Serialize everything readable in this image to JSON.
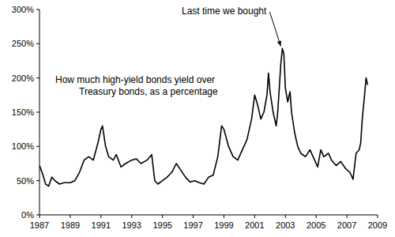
{
  "chart_data": {
    "type": "line",
    "title": "How much high-yield bonds yield over Treasury bonds, as a percentage",
    "annotations": [
      "Last time we bought"
    ],
    "color": "#000000",
    "x": [
      1987.0,
      1987.2,
      1987.4,
      1987.6,
      1987.8,
      1988.0,
      1988.3,
      1988.6,
      1989.0,
      1989.3,
      1989.6,
      1989.9,
      1990.2,
      1990.5,
      1990.8,
      1991.0,
      1991.1,
      1991.3,
      1991.5,
      1991.8,
      1992.0,
      1992.3,
      1992.6,
      1993.0,
      1993.3,
      1993.6,
      1994.0,
      1994.3,
      1994.5,
      1994.7,
      1995.0,
      1995.3,
      1995.6,
      1995.9,
      1996.2,
      1996.5,
      1996.8,
      1997.1,
      1997.4,
      1997.7,
      1998.0,
      1998.3,
      1998.6,
      1998.85,
      1999.0,
      1999.3,
      1999.6,
      1999.9,
      2000.2,
      2000.5,
      2000.8,
      2001.0,
      2001.2,
      2001.4,
      2001.6,
      2001.8,
      2001.9,
      2002.0,
      2002.2,
      2002.4,
      2002.5,
      2002.7,
      2002.8,
      2002.9,
      2003.0,
      2003.15,
      2003.3,
      2003.4,
      2003.6,
      2003.8,
      2004.0,
      2004.3,
      2004.6,
      2004.9,
      2005.1,
      2005.3,
      2005.5,
      2005.8,
      2006.0,
      2006.3,
      2006.6,
      2006.9,
      2007.2,
      2007.4,
      2007.6,
      2007.8,
      2007.9,
      2008.0,
      2008.15,
      2008.25,
      2008.35
    ],
    "values": [
      72,
      60,
      45,
      42,
      55,
      50,
      45,
      47,
      47,
      50,
      62,
      80,
      85,
      80,
      105,
      125,
      130,
      100,
      85,
      80,
      88,
      70,
      75,
      80,
      82,
      75,
      80,
      88,
      50,
      45,
      50,
      55,
      62,
      75,
      65,
      55,
      48,
      50,
      47,
      45,
      55,
      58,
      85,
      130,
      125,
      100,
      85,
      80,
      95,
      110,
      140,
      175,
      160,
      140,
      150,
      175,
      207,
      180,
      150,
      130,
      150,
      220,
      243,
      235,
      185,
      165,
      180,
      150,
      120,
      100,
      90,
      85,
      95,
      80,
      70,
      95,
      85,
      90,
      80,
      72,
      78,
      68,
      62,
      52,
      90,
      95,
      105,
      140,
      175,
      200,
      190
    ],
    "xlim": [
      1987,
      2009
    ],
    "xticks": [
      1987,
      1989,
      1991,
      1993,
      1995,
      1997,
      1999,
      2001,
      2003,
      2005,
      2007,
      2009
    ],
    "ylim": [
      0,
      300
    ],
    "yticks": [
      {
        "value": 0,
        "label": "0%"
      },
      {
        "value": 50,
        "label": "50%"
      },
      {
        "value": 100,
        "label": "100%"
      },
      {
        "value": 150,
        "label": "150%"
      },
      {
        "value": 200,
        "label": "200%"
      },
      {
        "value": 250,
        "label": "250%"
      },
      {
        "value": 300,
        "label": "300%"
      }
    ],
    "grid": false
  }
}
